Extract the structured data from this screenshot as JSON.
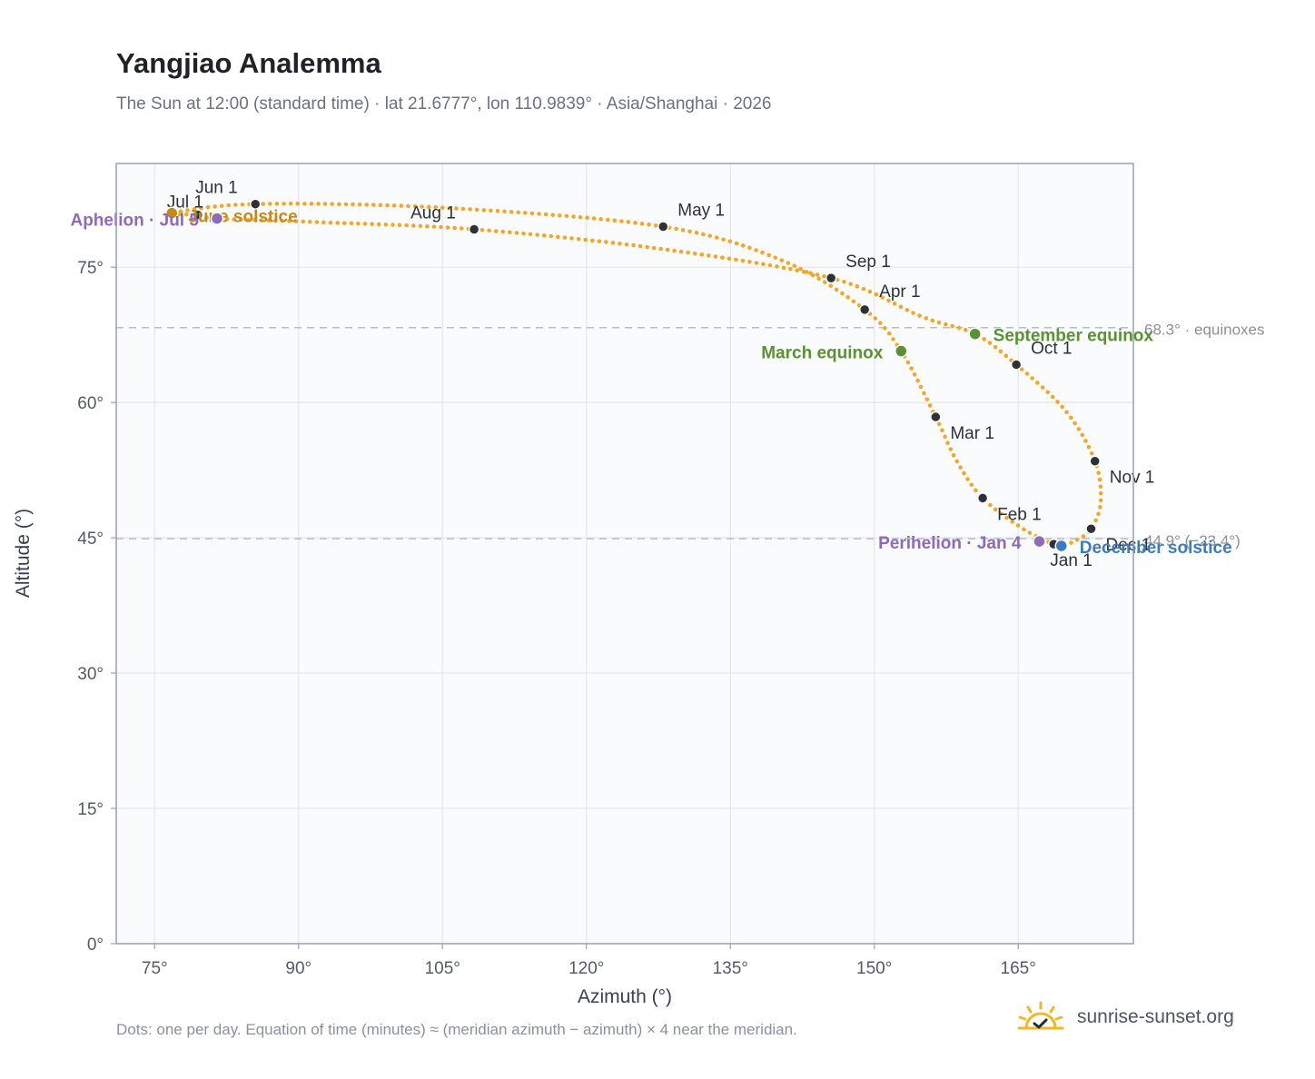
{
  "page": {
    "title": "Yangjiao Analemma",
    "subtitle": "The Sun at 12:00 (standard time) · lat 21.6777°, lon 110.9839° · Asia/Shanghai · 2026",
    "footnote": "Dots: one per day. Equation of time (minutes) ≈ (meridian azimuth − azimuth) × 4 near the meridian.",
    "brand": "sunrise-sunset.org"
  },
  "colors": {
    "curve": "#f5a623",
    "month_dot": "#2d3239",
    "equinox": "#5a9232",
    "june_solstice": "#c8891a",
    "december_solstice": "#3a7cc3",
    "apsis": "#8e6bb8",
    "ref_line": "#b8bec6",
    "grid": "#e3e7ec",
    "plot_bg": "#f9fbfd",
    "frame": "#98a2b0"
  },
  "chart_data": {
    "type": "scatter",
    "xlabel": "Azimuth (°)",
    "ylabel": "Altitude (°)",
    "xlim": [
      71,
      177
    ],
    "ylim": [
      0,
      86.5
    ],
    "xticks": [
      75,
      90,
      105,
      120,
      135,
      150,
      165
    ],
    "xtick_labels": [
      "75°",
      "90°",
      "105°",
      "120°",
      "135°",
      "150°",
      "165°"
    ],
    "yticks": [
      0,
      15,
      30,
      45,
      60,
      75
    ],
    "ytick_labels": [
      "0°",
      "15°",
      "30°",
      "45°",
      "60°",
      "75°"
    ],
    "grid": true,
    "reference_lines": [
      {
        "y": 68.3,
        "label": "68.3° · equinoxes"
      },
      {
        "y": 44.9,
        "label": "44.9° (−23.4°)"
      }
    ],
    "month_markers": [
      {
        "label": "Jan 1",
        "az": 168.7,
        "alt": 44.3
      },
      {
        "label": "Feb 1",
        "az": 161.3,
        "alt": 49.4
      },
      {
        "label": "Mar 1",
        "az": 156.4,
        "alt": 58.4
      },
      {
        "label": "Apr 1",
        "az": 149.0,
        "alt": 70.3
      },
      {
        "label": "May 1",
        "az": 128.0,
        "alt": 79.5
      },
      {
        "label": "Jun 1",
        "az": 85.5,
        "alt": 82.0
      },
      {
        "label": "Jul 1",
        "az": 79.5,
        "alt": 80.8
      },
      {
        "label": "Aug 1",
        "az": 108.3,
        "alt": 79.2
      },
      {
        "label": "Sep 1",
        "az": 145.5,
        "alt": 73.8
      },
      {
        "label": "Oct 1",
        "az": 164.8,
        "alt": 64.2
      },
      {
        "label": "Nov 1",
        "az": 173.0,
        "alt": 53.5
      },
      {
        "label": "Dec 1",
        "az": 172.6,
        "alt": 46.0
      }
    ],
    "events": [
      {
        "label": "March equinox",
        "az": 152.8,
        "alt": 65.7,
        "color_key": "equinox"
      },
      {
        "label": "September equinox",
        "az": 160.5,
        "alt": 67.6,
        "color_key": "equinox"
      },
      {
        "label": "June solstice",
        "az": 76.8,
        "alt": 81.0,
        "color_key": "june_solstice"
      },
      {
        "label": "December solstice",
        "az": 169.5,
        "alt": 44.1,
        "color_key": "december_solstice"
      },
      {
        "label": "Aphelion · Jul 5",
        "az": 81.5,
        "alt": 80.4,
        "color_key": "apsis"
      },
      {
        "label": "Perihelion · Jan 4",
        "az": 167.2,
        "alt": 44.6,
        "color_key": "apsis"
      }
    ],
    "path": [
      {
        "date": "Dec 21",
        "az": 169.5,
        "alt": 44.1
      },
      {
        "date": "Jan 1",
        "az": 168.7,
        "alt": 44.3
      },
      {
        "date": "Jan 15",
        "az": 165.5,
        "alt": 46.0
      },
      {
        "date": "Feb 1",
        "az": 161.3,
        "alt": 49.4
      },
      {
        "date": "Feb 15",
        "az": 158.6,
        "alt": 53.5
      },
      {
        "date": "Mar 1",
        "az": 156.4,
        "alt": 58.4
      },
      {
        "date": "Mar 20",
        "az": 152.8,
        "alt": 65.7
      },
      {
        "date": "Apr 1",
        "az": 149.0,
        "alt": 70.3
      },
      {
        "date": "Apr 15",
        "az": 140.5,
        "alt": 75.7
      },
      {
        "date": "May 1",
        "az": 128.0,
        "alt": 79.5
      },
      {
        "date": "May 15",
        "az": 105.0,
        "alt": 81.6
      },
      {
        "date": "Jun 1",
        "az": 85.5,
        "alt": 82.0
      },
      {
        "date": "Jun 21",
        "az": 76.8,
        "alt": 81.0
      },
      {
        "date": "Jul 1",
        "az": 79.5,
        "alt": 80.8
      },
      {
        "date": "Jul 5",
        "az": 81.5,
        "alt": 80.4
      },
      {
        "date": "Jul 15",
        "az": 92.0,
        "alt": 80.0
      },
      {
        "date": "Aug 1",
        "az": 108.3,
        "alt": 79.2
      },
      {
        "date": "Aug 15",
        "az": 128.0,
        "alt": 77.0
      },
      {
        "date": "Sep 1",
        "az": 145.5,
        "alt": 73.8
      },
      {
        "date": "Sep 15",
        "az": 155.0,
        "alt": 69.5
      },
      {
        "date": "Sep 23",
        "az": 160.5,
        "alt": 67.6
      },
      {
        "date": "Oct 1",
        "az": 164.8,
        "alt": 64.2
      },
      {
        "date": "Oct 15",
        "az": 170.0,
        "alt": 59.0
      },
      {
        "date": "Nov 1",
        "az": 173.0,
        "alt": 53.5
      },
      {
        "date": "Nov 15",
        "az": 173.6,
        "alt": 49.0
      },
      {
        "date": "Dec 1",
        "az": 172.6,
        "alt": 46.0
      },
      {
        "date": "Dec 10",
        "az": 171.0,
        "alt": 44.7
      },
      {
        "date": "Dec 21",
        "az": 169.5,
        "alt": 44.1
      }
    ]
  }
}
